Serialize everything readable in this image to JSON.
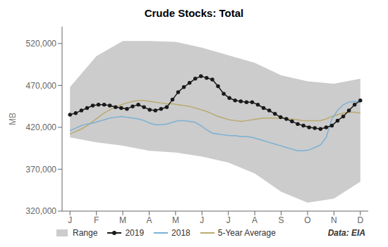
{
  "chart_data": {
    "type": "line",
    "title": "Crude Stocks: Total",
    "ylabel": "MB",
    "annotation": "Data: EIA",
    "legend": "bottom",
    "grid": false,
    "x": [
      0,
      0.2157,
      0.4314,
      0.6471,
      0.8627,
      1.0784,
      1.2941,
      1.5098,
      1.7255,
      1.9412,
      2.1569,
      2.3725,
      2.5882,
      2.8039,
      3.0196,
      3.2353,
      3.451,
      3.6667,
      3.8824,
      4.098,
      4.3137,
      4.5294,
      4.7451,
      4.9608,
      5.1765,
      5.3922,
      5.6078,
      5.8235,
      6.0392,
      6.2549,
      6.4706,
      6.6863,
      6.902,
      7.1176,
      7.3333,
      7.549,
      7.7647,
      7.9804,
      8.1961,
      8.4118,
      8.6275,
      8.8431,
      9.0588,
      9.2745,
      9.4902,
      9.7059,
      9.9216,
      10.1373,
      10.3529,
      10.5686,
      10.7843,
      11
    ],
    "xlim": [
      -0.3,
      11.3
    ],
    "xticks": [
      {
        "value": 0,
        "label": "J"
      },
      {
        "value": 1,
        "label": "F"
      },
      {
        "value": 2,
        "label": "M"
      },
      {
        "value": 3,
        "label": "A"
      },
      {
        "value": 4,
        "label": "M"
      },
      {
        "value": 5,
        "label": "J"
      },
      {
        "value": 6,
        "label": "J"
      },
      {
        "value": 7,
        "label": "A"
      },
      {
        "value": 8,
        "label": "S"
      },
      {
        "value": 9,
        "label": "O"
      },
      {
        "value": 10,
        "label": "N"
      },
      {
        "value": 11,
        "label": "D"
      }
    ],
    "ylim": [
      320000,
      540000
    ],
    "yticks": [
      {
        "value": 320000,
        "label": "320,000"
      },
      {
        "value": 370000,
        "label": "370,000"
      },
      {
        "value": 420000,
        "label": "420,000"
      },
      {
        "value": 470000,
        "label": "470,000"
      },
      {
        "value": 520000,
        "label": "520,000"
      }
    ],
    "series": [
      {
        "name": "Range",
        "type": "area",
        "color": "#cccccc",
        "x": [
          0,
          1,
          2,
          3,
          4,
          5,
          6,
          7,
          8,
          9,
          10,
          11
        ],
        "upper": [
          468000,
          505000,
          523000,
          523000,
          522000,
          515000,
          506000,
          497000,
          482000,
          475000,
          472000,
          478000
        ],
        "lower": [
          408000,
          402000,
          398000,
          392000,
          390000,
          385000,
          378000,
          365000,
          343000,
          330000,
          335000,
          355000
        ]
      },
      {
        "name": "2019",
        "type": "line",
        "color": "#1a1a1a",
        "marker": "circle",
        "values": [
          435000,
          437000,
          440000,
          443000,
          446000,
          447000,
          447000,
          446000,
          444000,
          443000,
          442000,
          445000,
          447000,
          444000,
          441000,
          440000,
          442000,
          444000,
          453000,
          462000,
          468000,
          473000,
          478000,
          481000,
          479000,
          477000,
          469000,
          460000,
          455000,
          452000,
          451000,
          450000,
          450000,
          447000,
          443000,
          440000,
          436000,
          432000,
          430000,
          427000,
          424000,
          422000,
          420000,
          419000,
          418000,
          420000,
          422000,
          428000,
          433000,
          440000,
          447000,
          452000
        ]
      },
      {
        "name": "2018",
        "type": "line",
        "color": "#7ab0d4",
        "values": [
          416000,
          419000,
          422000,
          424000,
          425000,
          427000,
          429000,
          431000,
          432000,
          433000,
          432000,
          431000,
          430000,
          428000,
          425000,
          423000,
          423000,
          424000,
          426000,
          428000,
          428000,
          427000,
          426000,
          422000,
          417000,
          413000,
          412000,
          411000,
          410000,
          410000,
          409000,
          409000,
          408000,
          406000,
          404000,
          402000,
          400000,
          398000,
          396000,
          394000,
          392000,
          392000,
          393000,
          396000,
          399000,
          408000,
          430000,
          440000,
          447000,
          450000,
          451000,
          450000
        ]
      },
      {
        "name": "5-Year Average",
        "type": "line",
        "color": "#b8aa6e",
        "values": [
          412000,
          415000,
          418000,
          422000,
          427000,
          432000,
          437000,
          441000,
          444000,
          447000,
          449000,
          451000,
          452000,
          452000,
          451000,
          450000,
          449000,
          448000,
          448000,
          447000,
          446000,
          445000,
          443000,
          441000,
          439000,
          436000,
          433000,
          431000,
          429000,
          428000,
          427000,
          428000,
          429000,
          430000,
          431000,
          431000,
          431000,
          431000,
          430000,
          430000,
          429000,
          428000,
          428000,
          428000,
          428000,
          430000,
          433000,
          435000,
          437000,
          438000,
          438000,
          437000
        ]
      }
    ]
  }
}
